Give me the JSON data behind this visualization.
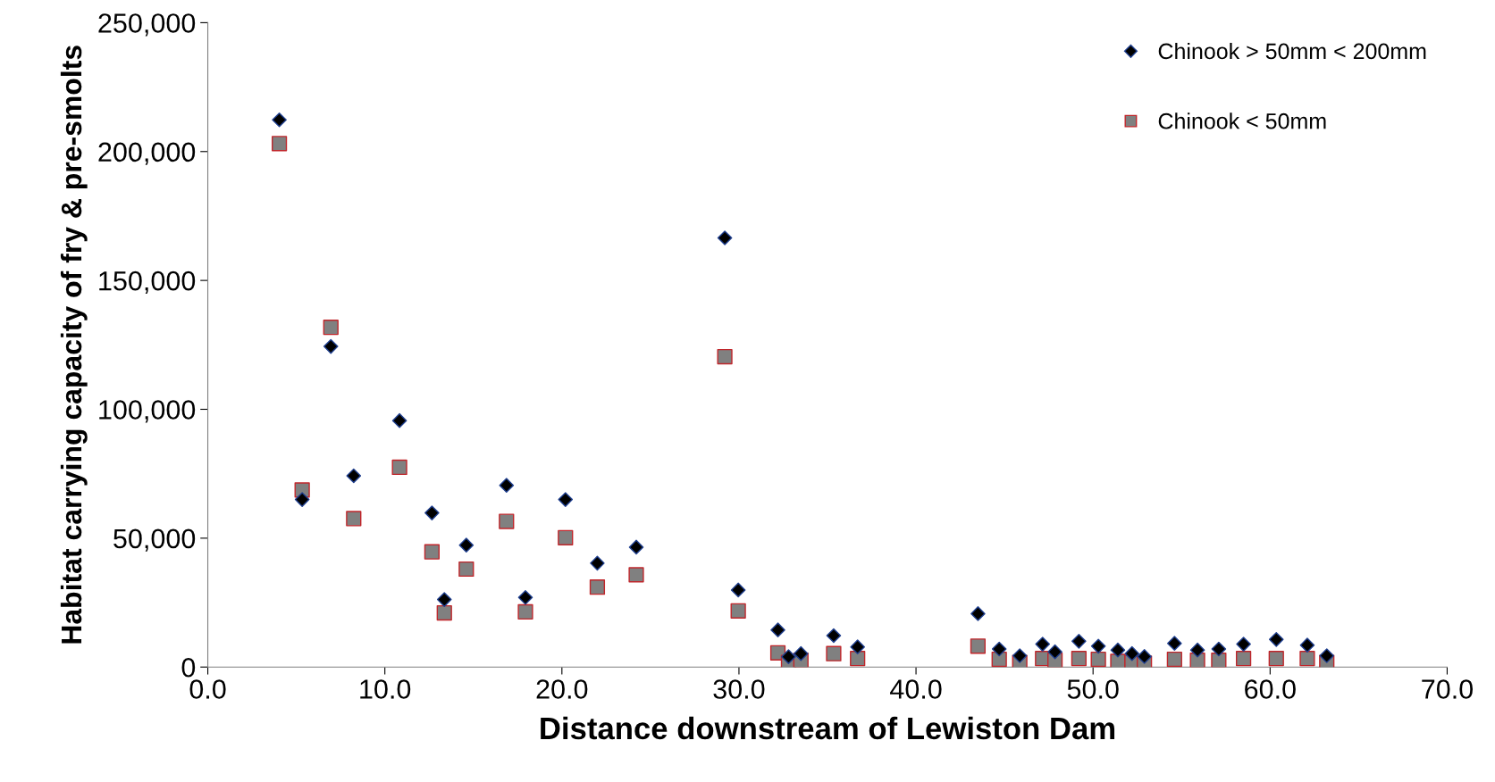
{
  "chart_data": {
    "type": "scatter",
    "xlabel": "Distance downstream of Lewiston Dam",
    "ylabel": "Habitat carrying capacity of fry & pre-smolts",
    "x": [
      4.04,
      5.33,
      6.95,
      8.24,
      10.83,
      12.66,
      13.36,
      14.6,
      16.87,
      17.94,
      20.2,
      22.0,
      24.2,
      29.2,
      29.96,
      32.2,
      32.8,
      33.5,
      35.35,
      36.7,
      43.5,
      44.7,
      45.86,
      47.15,
      47.85,
      49.2,
      50.3,
      51.4,
      52.2,
      52.9,
      54.6,
      55.9,
      57.1,
      58.5,
      60.35,
      62.1,
      63.2
    ],
    "series": [
      {
        "name": "Chinook > 50mm < 200mm",
        "color": "#000000",
        "marker": "diamond",
        "values": [
          212300,
          65000,
          124400,
          74200,
          95600,
          59800,
          26200,
          47300,
          70500,
          27000,
          65000,
          40300,
          46500,
          166500,
          29900,
          14400,
          4000,
          5200,
          12200,
          7800,
          20700,
          7000,
          4400,
          8900,
          5900,
          10000,
          8100,
          6600,
          5200,
          4100,
          9200,
          6600,
          7000,
          8900,
          10700,
          8500,
          4400
        ]
      },
      {
        "name": "Chinook < 50mm",
        "color": "#808080",
        "marker": "square",
        "values": [
          203100,
          68700,
          131800,
          57600,
          77500,
          44700,
          21000,
          38000,
          56500,
          21400,
          50200,
          31000,
          35800,
          120400,
          21800,
          5500,
          1800,
          2600,
          5200,
          3300,
          8100,
          3000,
          1800,
          3300,
          2600,
          3300,
          3000,
          2200,
          1800,
          1500,
          3000,
          2600,
          2600,
          3300,
          3300,
          3300,
          1800
        ]
      }
    ],
    "xlim": [
      0,
      70
    ],
    "xticks": [
      {
        "value": 0,
        "label": "0.0"
      },
      {
        "value": 10,
        "label": "10.0"
      },
      {
        "value": 20,
        "label": "20.0"
      },
      {
        "value": 30,
        "label": "30.0"
      },
      {
        "value": 40,
        "label": "40.0"
      },
      {
        "value": 50,
        "label": "50.0"
      },
      {
        "value": 60,
        "label": "60.0"
      },
      {
        "value": 70,
        "label": "70.0"
      }
    ],
    "ylim": [
      0,
      250000
    ],
    "yticks": [
      {
        "value": 0,
        "label": "0"
      },
      {
        "value": 50000,
        "label": "50,000"
      },
      {
        "value": 100000,
        "label": "100,000"
      },
      {
        "value": 150000,
        "label": "150,000"
      },
      {
        "value": 200000,
        "label": "200,000"
      },
      {
        "value": 250000,
        "label": "250,000"
      }
    ],
    "grid": false,
    "legend": "top right"
  }
}
